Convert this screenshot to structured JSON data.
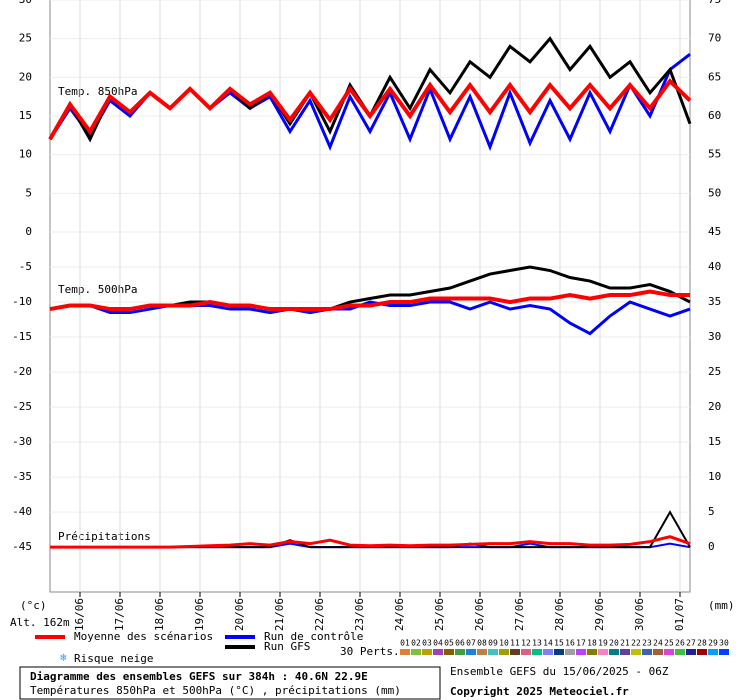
{
  "chart_data": [
    {
      "type": "line",
      "annotation": "Temp. 850hPa",
      "x": [
        0,
        12,
        24,
        36,
        48,
        60,
        72,
        84,
        96,
        108,
        120,
        132,
        144,
        156,
        168,
        180,
        192,
        204,
        216,
        228,
        240,
        252,
        264,
        276,
        288,
        300,
        312,
        324,
        336,
        348,
        360,
        372,
        384
      ],
      "xlim": [
        0,
        384
      ],
      "ylim": [
        0,
        30
      ],
      "yticks": [
        0,
        5,
        10,
        15,
        20,
        25,
        30
      ],
      "y2lim": [
        45,
        75
      ],
      "y2ticks": [
        50,
        55,
        60,
        65,
        70,
        75
      ],
      "grid": true,
      "series": [
        {
          "color": "#0000ff",
          "width": 3,
          "values": [
            12,
            16,
            12.5,
            17,
            15,
            18,
            16,
            18.5,
            16,
            18,
            16,
            17.5,
            13,
            17,
            11,
            17.5,
            13,
            18,
            12,
            18.5,
            12,
            17.5,
            11,
            18,
            11.5,
            17,
            12,
            18,
            13,
            19,
            15,
            21,
            23
          ]
        },
        {
          "color": "#000000",
          "width": 3,
          "values": [
            12,
            16.5,
            12,
            17.5,
            15.5,
            18,
            16,
            18.5,
            16,
            18.5,
            16,
            18,
            14,
            18,
            13,
            19,
            15,
            20,
            16,
            21,
            18,
            22,
            20,
            24,
            22,
            25,
            21,
            24,
            20,
            22,
            18,
            21,
            14
          ]
        },
        {
          "color": "#ff0000",
          "width": 4,
          "values": [
            12,
            16.5,
            13,
            17.5,
            15.5,
            18,
            16,
            18.5,
            16,
            18.5,
            16.5,
            18,
            14.5,
            18,
            14.5,
            18.5,
            15,
            18.5,
            15,
            19,
            15.5,
            19,
            15.5,
            19,
            15.5,
            19,
            16,
            19,
            16,
            19,
            16,
            19.5,
            17
          ]
        }
      ]
    },
    {
      "type": "line",
      "annotations": [
        "Temp. 500hPa",
        "Précipitations"
      ],
      "x": [
        0,
        12,
        24,
        36,
        48,
        60,
        72,
        84,
        96,
        108,
        120,
        132,
        144,
        156,
        168,
        180,
        192,
        204,
        216,
        228,
        240,
        252,
        264,
        276,
        288,
        300,
        312,
        324,
        336,
        348,
        360,
        372,
        384
      ],
      "xlim": [
        0,
        384
      ],
      "ylim": [
        -51.4,
        0
      ],
      "yticks": [
        -5,
        -10,
        -15,
        -20,
        -25,
        -30,
        -35,
        -40,
        -45
      ],
      "y2lim": [
        -6.4,
        45
      ],
      "y2ticks": [
        0,
        5,
        10,
        15,
        20,
        25,
        30,
        35,
        40,
        45
      ],
      "grid": true,
      "xticks": [
        {
          "value": 18,
          "label": "16/06"
        },
        {
          "value": 42,
          "label": "17/06"
        },
        {
          "value": 66,
          "label": "18/06"
        },
        {
          "value": 90,
          "label": "19/06"
        },
        {
          "value": 114,
          "label": "20/06"
        },
        {
          "value": 138,
          "label": "21/06"
        },
        {
          "value": 162,
          "label": "22/06"
        },
        {
          "value": 186,
          "label": "23/06"
        },
        {
          "value": 210,
          "label": "24/06"
        },
        {
          "value": 234,
          "label": "25/06"
        },
        {
          "value": 258,
          "label": "26/06"
        },
        {
          "value": 282,
          "label": "27/06"
        },
        {
          "value": 306,
          "label": "28/06"
        },
        {
          "value": 330,
          "label": "29/06"
        },
        {
          "value": 354,
          "label": "30/06"
        },
        {
          "value": 378,
          "label": "01/07"
        }
      ],
      "series": [
        {
          "color": "#0000ff",
          "width": 3,
          "values": [
            -11,
            -10.5,
            -10.5,
            -11.5,
            -11.5,
            -11,
            -10.5,
            -10.5,
            -10.5,
            -11,
            -11,
            -11.5,
            -11,
            -11.5,
            -11,
            -11,
            -10,
            -10.5,
            -10.5,
            -10,
            -10,
            -11,
            -10,
            -11,
            -10.5,
            -11,
            -13,
            -14.5,
            -12,
            -10,
            -11,
            -12,
            -11
          ]
        },
        {
          "color": "#000000",
          "width": 3,
          "values": [
            -11,
            -10.5,
            -10.5,
            -11,
            -11,
            -10.5,
            -10.5,
            -10,
            -10,
            -10.5,
            -10.5,
            -11,
            -11,
            -11,
            -11,
            -10,
            -9.5,
            -9,
            -9,
            -8.5,
            -8,
            -7,
            -6,
            -5.5,
            -5,
            -5.5,
            -6.5,
            -7,
            -8,
            -8,
            -7.5,
            -8.5,
            -10
          ]
        },
        {
          "color": "#ff0000",
          "width": 4,
          "values": [
            -11,
            -10.5,
            -10.5,
            -11,
            -11,
            -10.5,
            -10.5,
            -10.5,
            -10,
            -10.5,
            -10.5,
            -11,
            -11,
            -11,
            -11,
            -10.5,
            -10.5,
            -10,
            -10,
            -9.5,
            -9.5,
            -9.5,
            -9.5,
            -10,
            -9.5,
            -9.5,
            -9,
            -9.5,
            -9,
            -9,
            -8.5,
            -9,
            -9
          ]
        },
        {
          "color": "#0000ff",
          "width": 2,
          "axis": "y2",
          "values": [
            0,
            0,
            0,
            0,
            0,
            0,
            0,
            0,
            0,
            0,
            0,
            0,
            0.5,
            0,
            0,
            0,
            0,
            0,
            0,
            0,
            0,
            0,
            0,
            0,
            0.5,
            0,
            0,
            0,
            0,
            0,
            0,
            0.5,
            0
          ]
        },
        {
          "color": "#000000",
          "width": 2,
          "axis": "y2",
          "values": [
            0,
            0,
            0,
            0,
            0,
            0,
            0,
            0,
            0,
            0,
            0,
            0,
            1,
            0,
            0,
            0,
            0,
            0,
            0,
            0,
            0,
            0.5,
            0,
            0,
            0,
            0,
            0,
            0,
            0,
            0,
            0,
            5,
            0
          ]
        },
        {
          "color": "#ff0000",
          "width": 3,
          "axis": "y2",
          "values": [
            0,
            0,
            0,
            0,
            0,
            0,
            0,
            0.1,
            0.2,
            0.3,
            0.5,
            0.3,
            0.8,
            0.5,
            1,
            0.3,
            0.2,
            0.3,
            0.2,
            0.3,
            0.3,
            0.4,
            0.5,
            0.5,
            0.8,
            0.5,
            0.5,
            0.3,
            0.3,
            0.4,
            0.8,
            1.5,
            0.5
          ]
        }
      ]
    }
  ],
  "units": {
    "left": "(°c)",
    "right": "(mm)",
    "altitude": "Alt. 162m"
  },
  "legend": [
    {
      "name": "Moyenne des scénarios",
      "color": "#ff0000"
    },
    {
      "name": "Run de contrôle",
      "color": "#0000ff"
    },
    {
      "name": "Run GFS",
      "color": "#000000"
    }
  ],
  "snow": "Risque neige",
  "perturbations": {
    "title": "30 Perts.",
    "labels": [
      "01",
      "02",
      "03",
      "04",
      "05",
      "06",
      "07",
      "08",
      "09",
      "10",
      "11",
      "12",
      "13",
      "14",
      "15",
      "16",
      "17",
      "18",
      "19",
      "20",
      "21",
      "22",
      "23",
      "24",
      "25",
      "26",
      "27",
      "28",
      "29",
      "30"
    ],
    "colors": [
      "#e08030",
      "#80c040",
      "#c0a000",
      "#a040c0",
      "#806000",
      "#40a040",
      "#2080e0",
      "#c08040",
      "#40c0c0",
      "#a0a000",
      "#604020",
      "#e06080",
      "#00c080",
      "#8080ff",
      "#004080",
      "#a0a0a0",
      "#c040ff",
      "#808000",
      "#ff80c0",
      "#008080",
      "#6040a0",
      "#c0c000",
      "#4060c0",
      "#a06040",
      "#e040e0",
      "#40c040",
      "#2020a0",
      "#a00000",
      "#00a0ff",
      "#0040ff"
    ]
  },
  "footer": {
    "title": "Diagramme des ensembles GEFS sur 384h : 40.6N 22.9E",
    "subtitle": "Températures 850hPa et 500hPa (°C) , précipitations (mm)",
    "run": "Ensemble GEFS du 15/06/2025 - 06Z",
    "copyright": "Copyright 2025 Meteociel.fr"
  }
}
